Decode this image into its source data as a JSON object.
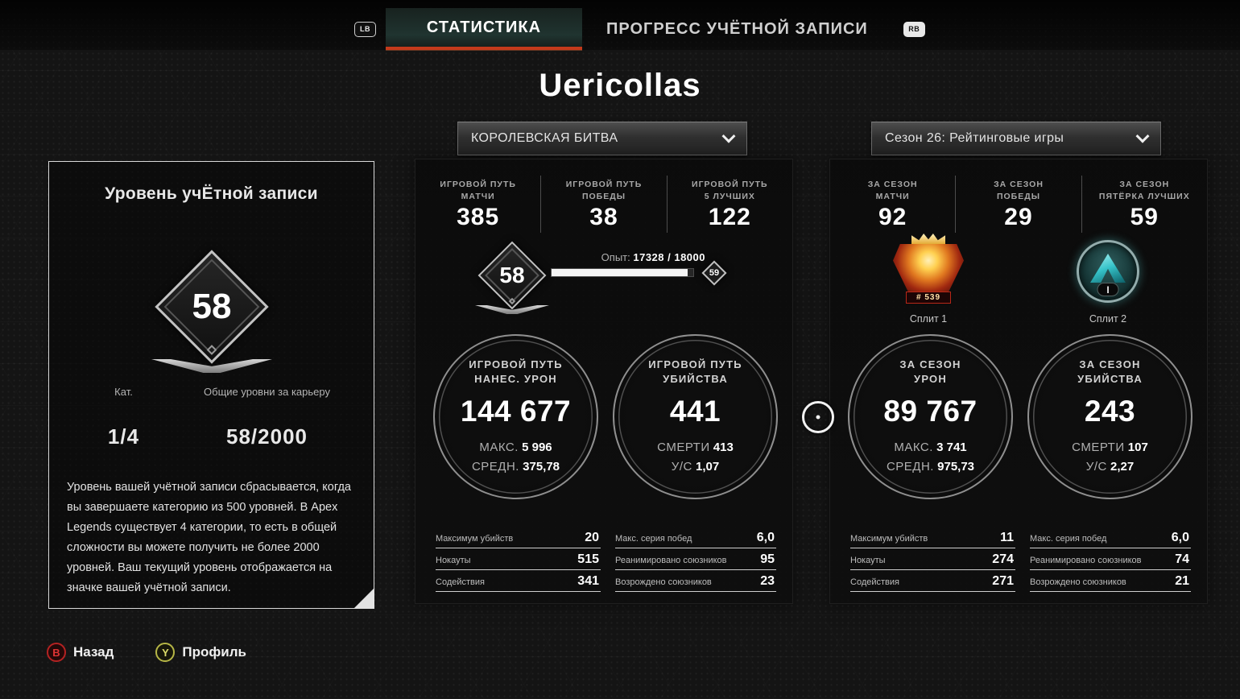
{
  "header": {
    "lb_icon": "LB",
    "rb_icon": "RB",
    "tabs": [
      {
        "label": "СТАТИСТИКА",
        "active": true
      },
      {
        "label": "ПРОГРЕСС УЧЁТНОЙ ЗАПИСИ",
        "active": false
      }
    ]
  },
  "player_name": "Uericollas",
  "filters": {
    "mode": "КОРОЛЕВСКАЯ БИТВА",
    "season": "Сезон 26: Рейтинговые игры"
  },
  "account_panel": {
    "title": "Уровень учЁтной записи",
    "badge_level": "58",
    "category_label": "Кат.",
    "category_value": "1/4",
    "levels_label": "Общие уровни за карьеру",
    "levels_value": "58/2000",
    "description": "Уровень вашей учётной записи сбрасывается, когда вы завершаете категорию из 500 уровней. В Apex Legends существует 4 категории, то есть в общей сложности вы можете получить не более 2000 уровней. Ваш текущий уровень отображается на значке вашей учётной записи."
  },
  "career_panel": {
    "top_stats": [
      {
        "label1": "ИГРОВОЙ ПУТЬ",
        "label2": "МАТЧИ",
        "value": "385"
      },
      {
        "label1": "ИГРОВОЙ ПУТЬ",
        "label2": "ПОБЕДЫ",
        "value": "38"
      },
      {
        "label1": "ИГРОВОЙ ПУТЬ",
        "label2": "5 ЛУЧШИХ",
        "value": "122"
      }
    ],
    "level_badge": "58",
    "xp_label": "Опыт:",
    "xp_value": "17328 / 18000",
    "xp_percent": 96,
    "next_level_badge": "59",
    "circles": [
      {
        "label1": "ИГРОВОЙ ПУТЬ",
        "label2": "НАНЕС. УРОН",
        "value": "144 677",
        "sub1_label": "МАКС.",
        "sub1_value": "5 996",
        "sub2_label": "СРЕДН.",
        "sub2_value": "375,78"
      },
      {
        "label1": "ИГРОВОЙ ПУТЬ",
        "label2": "УБИЙСТВА",
        "value": "441",
        "sub1_label": "СМЕРТИ",
        "sub1_value": "413",
        "sub2_label": "У/С",
        "sub2_value": "1,07"
      }
    ],
    "detail_stats_left": [
      {
        "label": "Максимум убийств",
        "value": "20"
      },
      {
        "label": "Нокауты",
        "value": "515"
      },
      {
        "label": "Содействия",
        "value": "341"
      }
    ],
    "detail_stats_right": [
      {
        "label": "Макс. серия побед",
        "value": "6,0"
      },
      {
        "label": "Реанимировано союзников",
        "value": "95"
      },
      {
        "label": "Возрождено союзников",
        "value": "23"
      }
    ]
  },
  "season_panel": {
    "top_stats": [
      {
        "label1": "ЗА СЕЗОН",
        "label2": "МАТЧИ",
        "value": "92"
      },
      {
        "label1": "ЗА СЕЗОН",
        "label2": "ПОБЕДЫ",
        "value": "29"
      },
      {
        "label1": "ЗА СЕЗОН",
        "label2": "ПЯТЁРКА ЛУЧШИХ",
        "value": "59"
      }
    ],
    "splits": [
      {
        "label": "Сплит 1",
        "badge": "apex-predator-badge",
        "rank_number": "# 539"
      },
      {
        "label": "Сплит 2",
        "badge": "platinum-badge",
        "tier": "I"
      }
    ],
    "circles": [
      {
        "label1": "ЗА СЕЗОН",
        "label2": "УРОН",
        "value": "89 767",
        "sub1_label": "МАКС.",
        "sub1_value": "3 741",
        "sub2_label": "СРЕДН.",
        "sub2_value": "975,73"
      },
      {
        "label1": "ЗА СЕЗОН",
        "label2": "УБИЙСТВА",
        "value": "243",
        "sub1_label": "СМЕРТИ",
        "sub1_value": "107",
        "sub2_label": "У/С",
        "sub2_value": "2,27"
      }
    ],
    "detail_stats_left": [
      {
        "label": "Максимум убийств",
        "value": "11"
      },
      {
        "label": "Нокауты",
        "value": "274"
      },
      {
        "label": "Содействия",
        "value": "271"
      }
    ],
    "detail_stats_right": [
      {
        "label": "Макс. серия побед",
        "value": "6,0"
      },
      {
        "label": "Реанимировано союзников",
        "value": "74"
      },
      {
        "label": "Возрождено союзников",
        "value": "21"
      }
    ]
  },
  "footer": {
    "back_key": "B",
    "back_button": "Назад",
    "profile_key": "Y",
    "profile_button": "Профиль"
  },
  "colors": {
    "tab_accent_underline": "#c43a1b",
    "active_tab_bg": "#203430",
    "predator_red": "#a02810",
    "predator_gold": "#ffd050",
    "platinum_teal": "#35c2c8",
    "button_b_red": "#b42222",
    "button_y_yellow": "#b6b646",
    "xp_bar_fill": "#f4f4f4"
  }
}
